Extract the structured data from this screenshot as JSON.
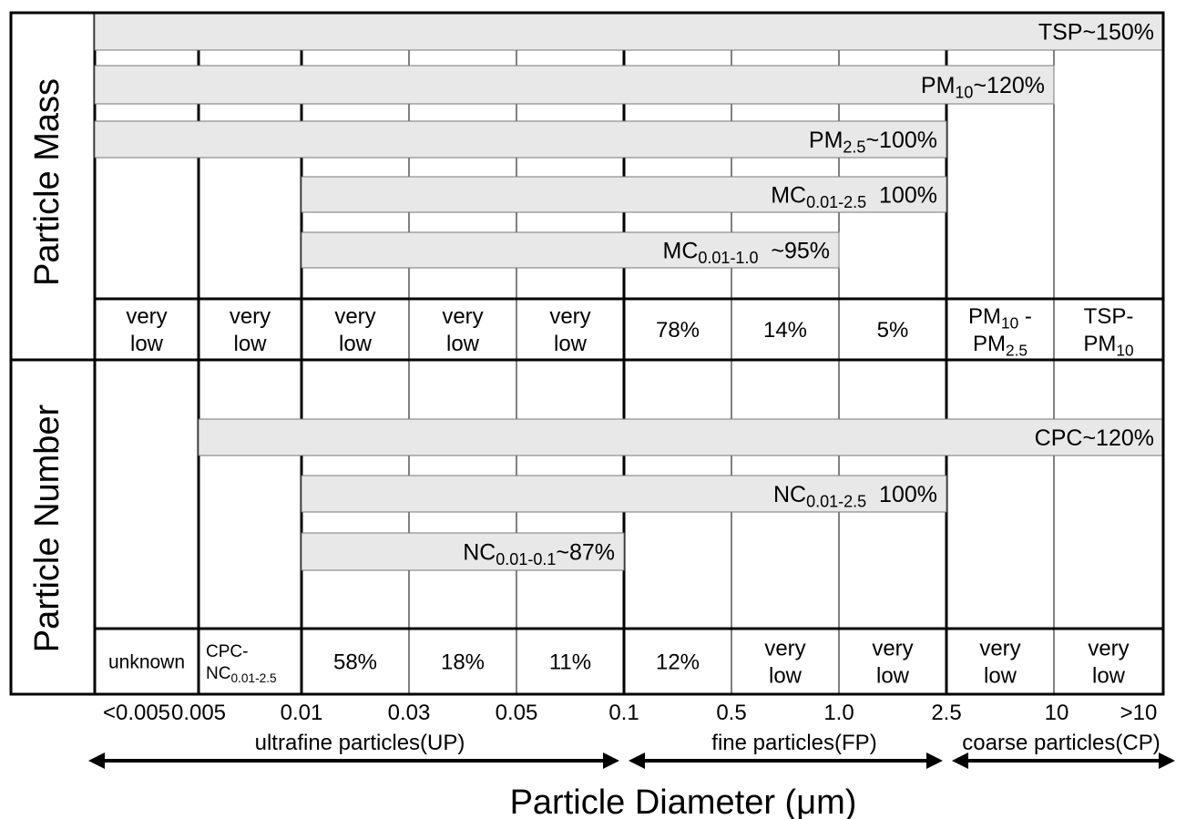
{
  "row_headers": [
    "Particle Mass",
    "Particle Number"
  ],
  "mass_bars": [
    {
      "label": [
        {
          "text": "TSP~150%"
        }
      ]
    },
    {
      "label": [
        {
          "text": "PM"
        },
        {
          "sub": "10"
        },
        {
          "text": "~120%"
        }
      ]
    },
    {
      "label": [
        {
          "text": "PM"
        },
        {
          "sub": "2.5"
        },
        {
          "text": "~100%"
        }
      ]
    },
    {
      "label": [
        {
          "text": "MC"
        },
        {
          "sub": "0.01-2.5"
        },
        {
          "text": "  100%"
        }
      ]
    },
    {
      "label": [
        {
          "text": "MC"
        },
        {
          "sub": "0.01-1.0"
        },
        {
          "text": "  ~95%"
        }
      ]
    }
  ],
  "number_bars": [
    {
      "label": [
        {
          "text": "CPC~120%"
        }
      ]
    },
    {
      "label": [
        {
          "text": "NC"
        },
        {
          "sub": "0.01-2.5"
        },
        {
          "text": "  100%"
        }
      ]
    },
    {
      "label": [
        {
          "text": "NC"
        },
        {
          "sub": "0.01-0.1"
        },
        {
          "text": "~87%"
        }
      ]
    }
  ],
  "mass_cells": [
    [
      [
        {
          "text": "very"
        }
      ],
      [
        {
          "text": "low"
        }
      ]
    ],
    [
      [
        {
          "text": "very"
        }
      ],
      [
        {
          "text": "low"
        }
      ]
    ],
    [
      [
        {
          "text": "very"
        }
      ],
      [
        {
          "text": "low"
        }
      ]
    ],
    [
      [
        {
          "text": "very"
        }
      ],
      [
        {
          "text": "low"
        }
      ]
    ],
    [
      [
        {
          "text": "very"
        }
      ],
      [
        {
          "text": "low"
        }
      ]
    ],
    [
      [
        {
          "text": "78%"
        }
      ]
    ],
    [
      [
        {
          "text": "14%"
        }
      ]
    ],
    [
      [
        {
          "text": "5%"
        }
      ]
    ],
    [
      [
        {
          "text": "PM"
        },
        {
          "sub": "10"
        },
        {
          "text": " -"
        }
      ],
      [
        {
          "text": "PM"
        },
        {
          "sub": "2.5"
        }
      ]
    ],
    [
      [
        {
          "text": "TSP-"
        }
      ],
      [
        {
          "text": "PM"
        },
        {
          "sub": "10"
        }
      ]
    ]
  ],
  "number_cells": [
    [
      [
        {
          "text": "unknown"
        }
      ]
    ],
    [
      [
        {
          "text": "CPC-"
        }
      ],
      [
        {
          "text": "NC"
        },
        {
          "sub": "0.01-2.5"
        }
      ]
    ],
    [
      [
        {
          "text": "58%"
        }
      ]
    ],
    [
      [
        {
          "text": "18%"
        }
      ]
    ],
    [
      [
        {
          "text": "11%"
        }
      ]
    ],
    [
      [
        {
          "text": "12%"
        }
      ]
    ],
    [
      [
        {
          "text": "very"
        }
      ],
      [
        {
          "text": "low"
        }
      ]
    ],
    [
      [
        {
          "text": "very"
        }
      ],
      [
        {
          "text": "low"
        }
      ]
    ],
    [
      [
        {
          "text": "very"
        }
      ],
      [
        {
          "text": "low"
        }
      ]
    ],
    [
      [
        {
          "text": "very"
        }
      ],
      [
        {
          "text": "low"
        }
      ]
    ]
  ],
  "size_labels": [
    "<0.005",
    "0.005",
    "0.01",
    "0.03",
    "0.05",
    "0.1",
    "0.5",
    "1.0",
    "2.5",
    "10",
    ">10"
  ],
  "ranges": [
    "ultrafine particles(UP)",
    "fine particles(FP)",
    "coarse particles(CP)"
  ],
  "axis_title": "Particle Diameter (μm)"
}
